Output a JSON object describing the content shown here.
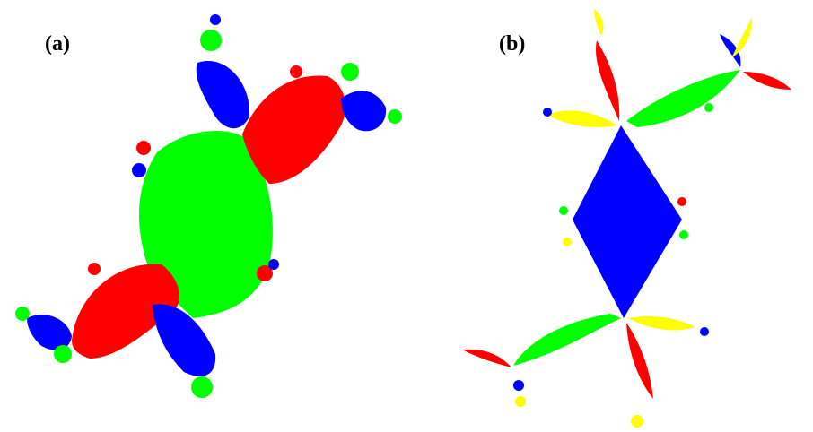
{
  "panels": [
    {
      "label": "(a)"
    },
    {
      "label": "(b)"
    }
  ],
  "colors": {
    "red": "#ff0000",
    "green": "#00ff00",
    "blue": "#0000ff",
    "yellow": "#ffff00",
    "background": "#ffffff"
  }
}
